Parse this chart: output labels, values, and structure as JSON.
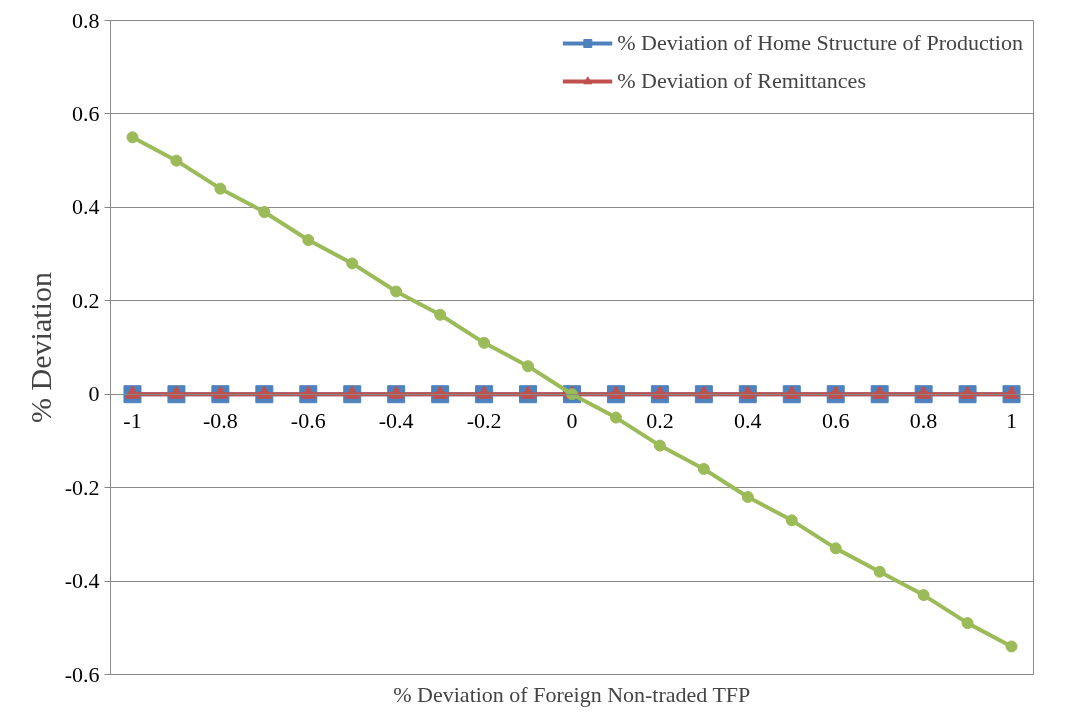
{
  "chart_data": {
    "type": "line",
    "xlabel": "% Deviation of Foreign Non-traded TFP",
    "ylabel": "% Deviation",
    "x": [
      -1,
      -0.9,
      -0.8,
      -0.7,
      -0.6,
      -0.5,
      -0.4,
      -0.3,
      -0.2,
      -0.1,
      0,
      0.1,
      0.2,
      0.3,
      0.4,
      0.5,
      0.6,
      0.7,
      0.8,
      0.9,
      1
    ],
    "series": [
      {
        "name": "% Deviation of Home Structure of Production",
        "color": "#4f81bd",
        "marker": "square",
        "values": [
          0,
          0,
          0,
          0,
          0,
          0,
          0,
          0,
          0,
          0,
          0,
          0,
          0,
          0,
          0,
          0,
          0,
          0,
          0,
          0,
          0
        ]
      },
      {
        "name": "% Deviation of Remittances",
        "color": "#c0504d",
        "marker": "triangle",
        "values": [
          0,
          0,
          0,
          0,
          0,
          0,
          0,
          0,
          0,
          0,
          0,
          0,
          0,
          0,
          0,
          0,
          0,
          0,
          0,
          0,
          0
        ]
      },
      {
        "color": "#9bbb59",
        "marker": "circle",
        "values": [
          0.55,
          0.5,
          0.44,
          0.39,
          0.33,
          0.28,
          0.22,
          0.17,
          0.11,
          0.06,
          0,
          -0.05,
          -0.11,
          -0.16,
          -0.22,
          -0.27,
          -0.33,
          -0.38,
          -0.43,
          -0.49,
          -0.54
        ]
      }
    ],
    "xlim": [
      -1.05,
      1.05
    ],
    "xticks": [
      -1,
      -0.8,
      -0.6,
      -0.4,
      -0.2,
      0,
      0.2,
      0.4,
      0.6,
      0.8,
      1
    ],
    "ylim": [
      -0.6,
      0.8
    ],
    "yticks": [
      -0.6,
      -0.4,
      -0.2,
      0,
      0.2,
      0.4,
      0.6,
      0.8
    ],
    "grid": "y",
    "legend": "top right"
  }
}
